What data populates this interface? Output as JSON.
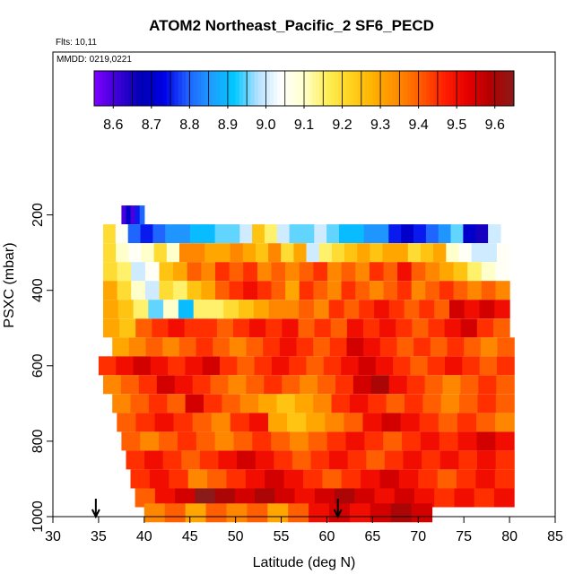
{
  "title": "ATOM2 Northeast_Pacific_2 SF6_PECD",
  "flights_label": "Flts: 10,11",
  "mmdd_label": "MMDD: 0219,0221",
  "chart_data": {
    "type": "heatmap",
    "title": "ATOM2 Northeast_Pacific_2 SF6_PECD",
    "xlabel": "Latitude (deg N)",
    "ylabel": "PSXC (mbar)",
    "xlim": [
      30,
      85
    ],
    "ylim": [
      1000,
      100
    ],
    "x_ticks": [
      30,
      35,
      40,
      45,
      50,
      55,
      60,
      65,
      70,
      75,
      80,
      85
    ],
    "y_ticks": [
      200,
      400,
      600,
      800,
      1000
    ],
    "colorbar": {
      "ticks": [
        8.6,
        8.7,
        8.8,
        8.9,
        9.0,
        9.1,
        9.2,
        9.3,
        9.4,
        9.5,
        9.6
      ],
      "tick_labels": [
        "8.6",
        "8.7",
        "8.8",
        "8.9",
        "9.0",
        "9.1",
        "9.2",
        "9.3",
        "9.4",
        "9.5",
        "9.6"
      ],
      "range": [
        8.55,
        9.65
      ],
      "colors": [
        "#7f00ff",
        "#3b00d6",
        "#0000b3",
        "#0000e6",
        "#1f5fff",
        "#1f9cff",
        "#00c8ff",
        "#b3e0ff",
        "#ffffff",
        "#ffffcc",
        "#ffee55",
        "#ffd21f",
        "#ffb000",
        "#ff8c00",
        "#ff5a00",
        "#ff1f00",
        "#e60000",
        "#b30000",
        "#8b1a1a"
      ]
    },
    "arrows": [
      34.7,
      61.2
    ],
    "start_lat": 35.0,
    "rows": [
      {
        "p": 200,
        "x0": 37.5,
        "x1": 40.0,
        "values": [
          8.6,
          8.7,
          8.6,
          8.75,
          8.8
        ]
      },
      {
        "p": 250,
        "x0": 35.5,
        "x1": 79.0,
        "values": [
          9.2,
          9.05,
          8.8,
          8.75,
          8.8,
          8.85,
          8.85,
          8.9,
          8.9,
          8.95,
          8.95,
          9.0,
          9.25,
          9.15,
          9.0,
          8.95,
          8.95,
          9.0,
          8.95,
          8.9,
          8.9,
          8.85,
          8.85,
          8.75,
          8.7,
          8.75,
          8.8,
          8.85,
          8.95,
          8.7,
          8.65,
          9.0
        ]
      },
      {
        "p": 300,
        "x0": 35.5,
        "x1": 80.0,
        "values": [
          9.2,
          9.1,
          9.05,
          9.1,
          9.2,
          9.1,
          9.35,
          9.35,
          9.3,
          9.3,
          9.35,
          9.3,
          9.25,
          9.35,
          9.2,
          9.3,
          9.0,
          9.15,
          9.2,
          9.25,
          9.3,
          9.25,
          9.3,
          9.3,
          9.2,
          9.25,
          9.3,
          9.1,
          9.05,
          9.0,
          9.0,
          9.05
        ]
      },
      {
        "p": 350,
        "x0": 35.5,
        "x1": 80.0,
        "values": [
          9.2,
          9.15,
          9.0,
          9.05,
          9.25,
          9.3,
          9.4,
          9.35,
          9.45,
          9.4,
          9.45,
          9.35,
          9.4,
          9.35,
          9.4,
          9.45,
          9.35,
          9.4,
          9.35,
          9.45,
          9.4,
          9.5,
          9.4,
          9.35,
          9.3,
          9.25,
          9.15,
          9.1,
          9.05
        ]
      },
      {
        "p": 400,
        "x0": 35.5,
        "x1": 80.0,
        "values": [
          9.3,
          9.2,
          9.1,
          9.0,
          9.2,
          9.15,
          9.25,
          9.3,
          9.4,
          9.45,
          9.5,
          9.45,
          9.4,
          9.3,
          9.45,
          9.4,
          9.35,
          9.45,
          9.4,
          9.35,
          9.4,
          9.45,
          9.35,
          9.4,
          9.45,
          9.4,
          9.35,
          9.4,
          9.35
        ]
      },
      {
        "p": 450,
        "x0": 35.5,
        "x1": 80.0,
        "values": [
          9.3,
          9.25,
          9.15,
          8.95,
          9.1,
          8.9,
          9.15,
          9.15,
          9.2,
          9.25,
          9.3,
          9.35,
          9.35,
          9.4,
          9.35,
          9.45,
          9.4,
          9.45,
          9.5,
          9.45,
          9.4,
          9.45,
          9.4,
          9.55,
          9.5,
          9.55,
          9.5
        ]
      },
      {
        "p": 500,
        "x0": 35.5,
        "x1": 80.0,
        "values": [
          9.3,
          9.25,
          9.4,
          9.45,
          9.5,
          9.45,
          9.45,
          9.4,
          9.45,
          9.5,
          9.45,
          9.5,
          9.4,
          9.45,
          9.4,
          9.5,
          9.45,
          9.5,
          9.45,
          9.4,
          9.45,
          9.5,
          9.55,
          9.45,
          9.4
        ]
      },
      {
        "p": 550,
        "x0": 36.5,
        "x1": 80.5,
        "values": [
          9.3,
          9.35,
          9.4,
          9.35,
          9.4,
          9.45,
          9.4,
          9.35,
          9.4,
          9.45,
          9.5,
          9.45,
          9.4,
          9.45,
          9.55,
          9.5,
          9.45,
          9.4,
          9.45,
          9.4,
          9.45,
          9.4,
          9.35,
          9.4
        ]
      },
      {
        "p": 600,
        "x0": 35.0,
        "x1": 80.5,
        "values": [
          9.45,
          9.5,
          9.55,
          9.5,
          9.45,
          9.5,
          9.55,
          9.45,
          9.4,
          9.45,
          9.5,
          9.45,
          9.4,
          9.45,
          9.5,
          9.55,
          9.5,
          9.45,
          9.4,
          9.45,
          9.5,
          9.45,
          9.4,
          9.45
        ]
      },
      {
        "p": 650,
        "x0": 35.5,
        "x1": 80.5,
        "values": [
          9.35,
          9.4,
          9.45,
          9.55,
          9.5,
          9.45,
          9.4,
          9.35,
          9.4,
          9.45,
          9.4,
          9.35,
          9.4,
          9.45,
          9.55,
          9.6,
          9.5,
          9.45,
          9.4,
          9.35,
          9.4,
          9.45,
          9.4
        ]
      },
      {
        "p": 700,
        "x0": 36.5,
        "x1": 80.5,
        "values": [
          9.35,
          9.4,
          9.45,
          9.4,
          9.55,
          9.45,
          9.4,
          9.35,
          9.3,
          9.25,
          9.3,
          9.35,
          9.45,
          9.5,
          9.45,
          9.4,
          9.45,
          9.4,
          9.35,
          9.4,
          9.45,
          9.4
        ]
      },
      {
        "p": 750,
        "x0": 37.0,
        "x1": 80.5,
        "values": [
          9.4,
          9.45,
          9.5,
          9.45,
          9.4,
          9.35,
          9.45,
          9.5,
          9.3,
          9.25,
          9.3,
          9.35,
          9.4,
          9.5,
          9.55,
          9.5,
          9.45,
          9.4,
          9.45,
          9.4,
          9.35
        ]
      },
      {
        "p": 800,
        "x0": 37.5,
        "x1": 80.5,
        "values": [
          9.4,
          9.35,
          9.4,
          9.45,
          9.4,
          9.35,
          9.4,
          9.45,
          9.4,
          9.35,
          9.4,
          9.45,
          9.5,
          9.45,
          9.4,
          9.45,
          9.5,
          9.45,
          9.5,
          9.55,
          9.5
        ]
      },
      {
        "p": 850,
        "x0": 38.0,
        "x1": 80.5,
        "values": [
          9.45,
          9.5,
          9.45,
          9.4,
          9.45,
          9.5,
          9.55,
          9.5,
          9.45,
          9.4,
          9.45,
          9.5,
          9.45,
          9.4,
          9.45,
          9.5,
          9.45,
          9.5,
          9.45,
          9.5,
          9.45
        ]
      },
      {
        "p": 900,
        "x0": 38.5,
        "x1": 80.5,
        "values": [
          9.45,
          9.5,
          9.45,
          9.35,
          9.4,
          9.45,
          9.5,
          9.55,
          9.5,
          9.45,
          9.4,
          9.45,
          9.5,
          9.55,
          9.5,
          9.45,
          9.4,
          9.45,
          9.5,
          9.45
        ]
      },
      {
        "p": 950,
        "x0": 39.0,
        "x1": 80.5,
        "values": [
          9.4,
          9.5,
          9.55,
          9.65,
          9.6,
          9.55,
          9.6,
          9.55,
          9.5,
          9.55,
          9.6,
          9.55,
          9.5,
          9.55,
          9.5,
          9.45,
          9.5,
          9.45,
          9.5
        ]
      },
      {
        "p": 990,
        "x0": 40.0,
        "x1": 71.5,
        "values": [
          9.35,
          9.4,
          9.3,
          9.4,
          9.35,
          9.4,
          9.3,
          9.4,
          9.5,
          9.55,
          9.5,
          9.55,
          9.6,
          9.55
        ]
      }
    ]
  }
}
